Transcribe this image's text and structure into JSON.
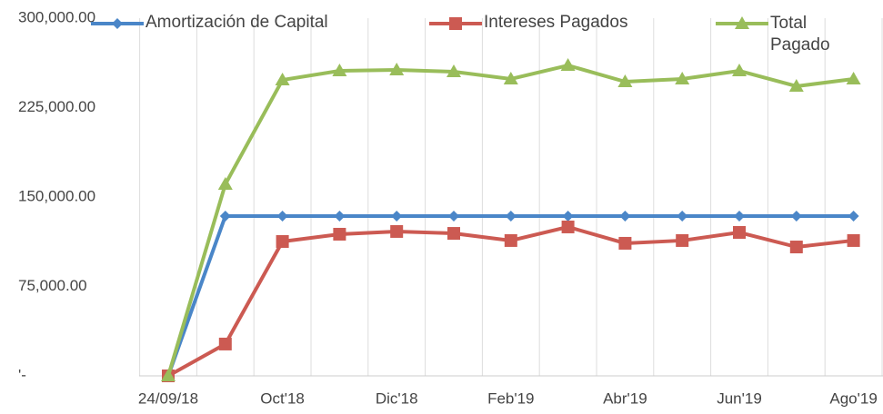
{
  "chart_data": {
    "type": "line",
    "categories": [
      "24/09/18",
      null,
      "Oct'18",
      null,
      "Dic'18",
      null,
      "Feb'19",
      null,
      "Abr'19",
      null,
      "Jun'19",
      null,
      "Ago'19"
    ],
    "series": [
      {
        "name": "Amortización de Capital",
        "color": "#4a86c8",
        "marker": "diamond",
        "values": [
          0,
          134000,
          134000,
          134000,
          134000,
          134000,
          134000,
          134000,
          134000,
          134000,
          134000,
          134000,
          134000
        ]
      },
      {
        "name": "Intereses Pagados",
        "color": "#cc5a52",
        "marker": "square",
        "values": [
          0,
          26700,
          112700,
          118800,
          121100,
          119500,
          113500,
          124900,
          111200,
          113500,
          120300,
          108100,
          113500
        ]
      },
      {
        "name": "Total Pagado",
        "color": "#99bd5a",
        "marker": "triangle",
        "values": [
          0,
          160700,
          248200,
          255800,
          256600,
          255100,
          249000,
          260400,
          246700,
          249000,
          255800,
          242900,
          249000
        ]
      }
    ],
    "ylim": [
      0,
      300000
    ],
    "yticks": [
      {
        "value": 0,
        "label": "'-"
      },
      {
        "value": 75000,
        "label": "75,000.00"
      },
      {
        "value": 150000,
        "label": "150,000.00"
      },
      {
        "value": 225000,
        "label": "225,000.00"
      },
      {
        "value": 300000,
        "label": "300,000.00"
      }
    ]
  }
}
